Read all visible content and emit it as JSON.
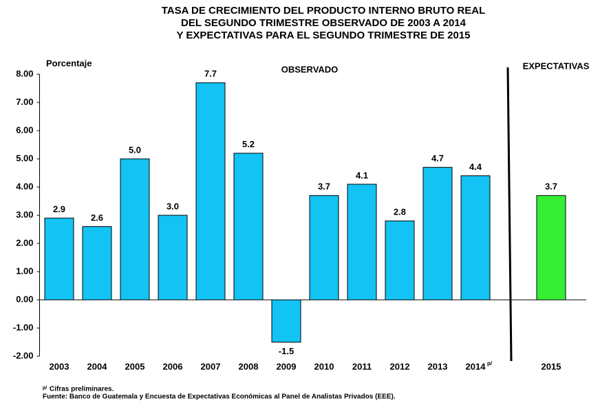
{
  "chart_data": {
    "type": "bar",
    "title": [
      "TASA DE CRECIMIENTO DEL PRODUCTO INTERNO BRUTO REAL",
      "DEL SEGUNDO TRIMESTRE OBSERVADO DE  2003 A 2014",
      "Y EXPECTATIVAS PARA EL SEGUNDO TRIMESTRE DE 2015"
    ],
    "y_label": "Porcentaje",
    "annotations": [
      "OBSERVADO",
      "EXPECTATIVAS"
    ],
    "preliminary_mark": "p/",
    "notes": [
      "Cifras preliminares.",
      "Fuente:  Banco de Guatemala y Encuesta de Expectativas Económicas al Panel de Analistas Privados (EEE)."
    ],
    "categories": [
      "2003",
      "2004",
      "2005",
      "2006",
      "2007",
      "2008",
      "2009",
      "2010",
      "2011",
      "2012",
      "2013",
      "2014",
      null,
      "2015"
    ],
    "values": [
      2.9,
      2.6,
      5.0,
      3.0,
      7.7,
      5.2,
      -1.5,
      3.7,
      4.1,
      2.8,
      4.7,
      4.4,
      null,
      3.7
    ],
    "value_labels": [
      "2.9",
      "2.6",
      "5.0",
      "3.0",
      "7.7",
      "5.2",
      "-1.5",
      "3.7",
      "4.1",
      "2.8",
      "4.7",
      "4.4",
      null,
      "3.7"
    ],
    "colors": [
      "#12c3f4",
      "#12c3f4",
      "#12c3f4",
      "#12c3f4",
      "#12c3f4",
      "#12c3f4",
      "#12c3f4",
      "#12c3f4",
      "#12c3f4",
      "#12c3f4",
      "#12c3f4",
      "#12c3f4",
      null,
      "#33ee33"
    ],
    "ylim": [
      -2,
      8
    ],
    "yticks": [
      {
        "value": -2,
        "label": "-2.00"
      },
      {
        "value": -1,
        "label": "-1.00"
      },
      {
        "value": 0,
        "label": "0.00"
      },
      {
        "value": 1,
        "label": "1.00"
      },
      {
        "value": 2,
        "label": "2.00"
      },
      {
        "value": 3,
        "label": "3.00"
      },
      {
        "value": 4,
        "label": "4.00"
      },
      {
        "value": 5,
        "label": "5.00"
      },
      {
        "value": 6,
        "label": "6.00"
      },
      {
        "value": 7,
        "label": "7.00"
      },
      {
        "value": 8,
        "label": "8.00"
      }
    ]
  }
}
